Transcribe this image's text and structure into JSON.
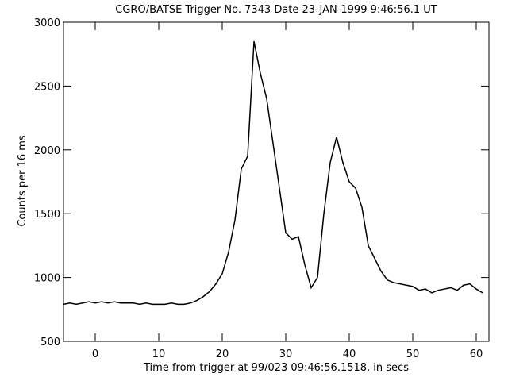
{
  "chart_data": {
    "type": "line",
    "title": "CGRO/BATSE Trigger No. 7343 Date 23-JAN-1999  9:46:56.1 UT",
    "x_label": "Time from trigger at 99/023 09:46:56.1518, in secs",
    "y_label": "Counts per 16 ms",
    "x": [
      -5,
      -4,
      -3,
      -2,
      -1,
      0,
      1,
      2,
      3,
      4,
      5,
      6,
      7,
      8,
      9,
      10,
      11,
      12,
      13,
      14,
      15,
      16,
      17,
      18,
      19,
      20,
      21,
      22,
      23,
      24,
      25,
      26,
      27,
      28,
      29,
      30,
      31,
      32,
      33,
      34,
      35,
      36,
      37,
      38,
      39,
      40,
      41,
      42,
      43,
      44,
      45,
      46,
      47,
      48,
      49,
      50,
      51,
      52,
      53,
      54,
      55,
      56,
      57,
      58,
      59,
      60,
      61
    ],
    "series": [
      {
        "name": "counts",
        "color": "#000000",
        "values": [
          790,
          800,
          790,
          800,
          810,
          800,
          810,
          800,
          810,
          800,
          800,
          800,
          790,
          800,
          790,
          790,
          790,
          800,
          790,
          790,
          800,
          820,
          850,
          890,
          950,
          1030,
          1200,
          1450,
          1850,
          1950,
          2850,
          2600,
          2400,
          2050,
          1700,
          1350,
          1300,
          1320,
          1100,
          920,
          1000,
          1500,
          1900,
          2100,
          1900,
          1750,
          1700,
          1550,
          1250,
          1150,
          1050,
          980,
          960,
          950,
          940,
          930,
          900,
          910,
          880,
          900,
          910,
          920,
          900,
          940,
          950,
          910,
          880
        ]
      }
    ],
    "xlim": [
      -5,
      62
    ],
    "ylim": [
      500,
      3000
    ],
    "xticks": [
      0,
      10,
      20,
      30,
      40,
      50,
      60
    ],
    "yticks": [
      500,
      1000,
      1500,
      2000,
      2500,
      3000
    ]
  }
}
